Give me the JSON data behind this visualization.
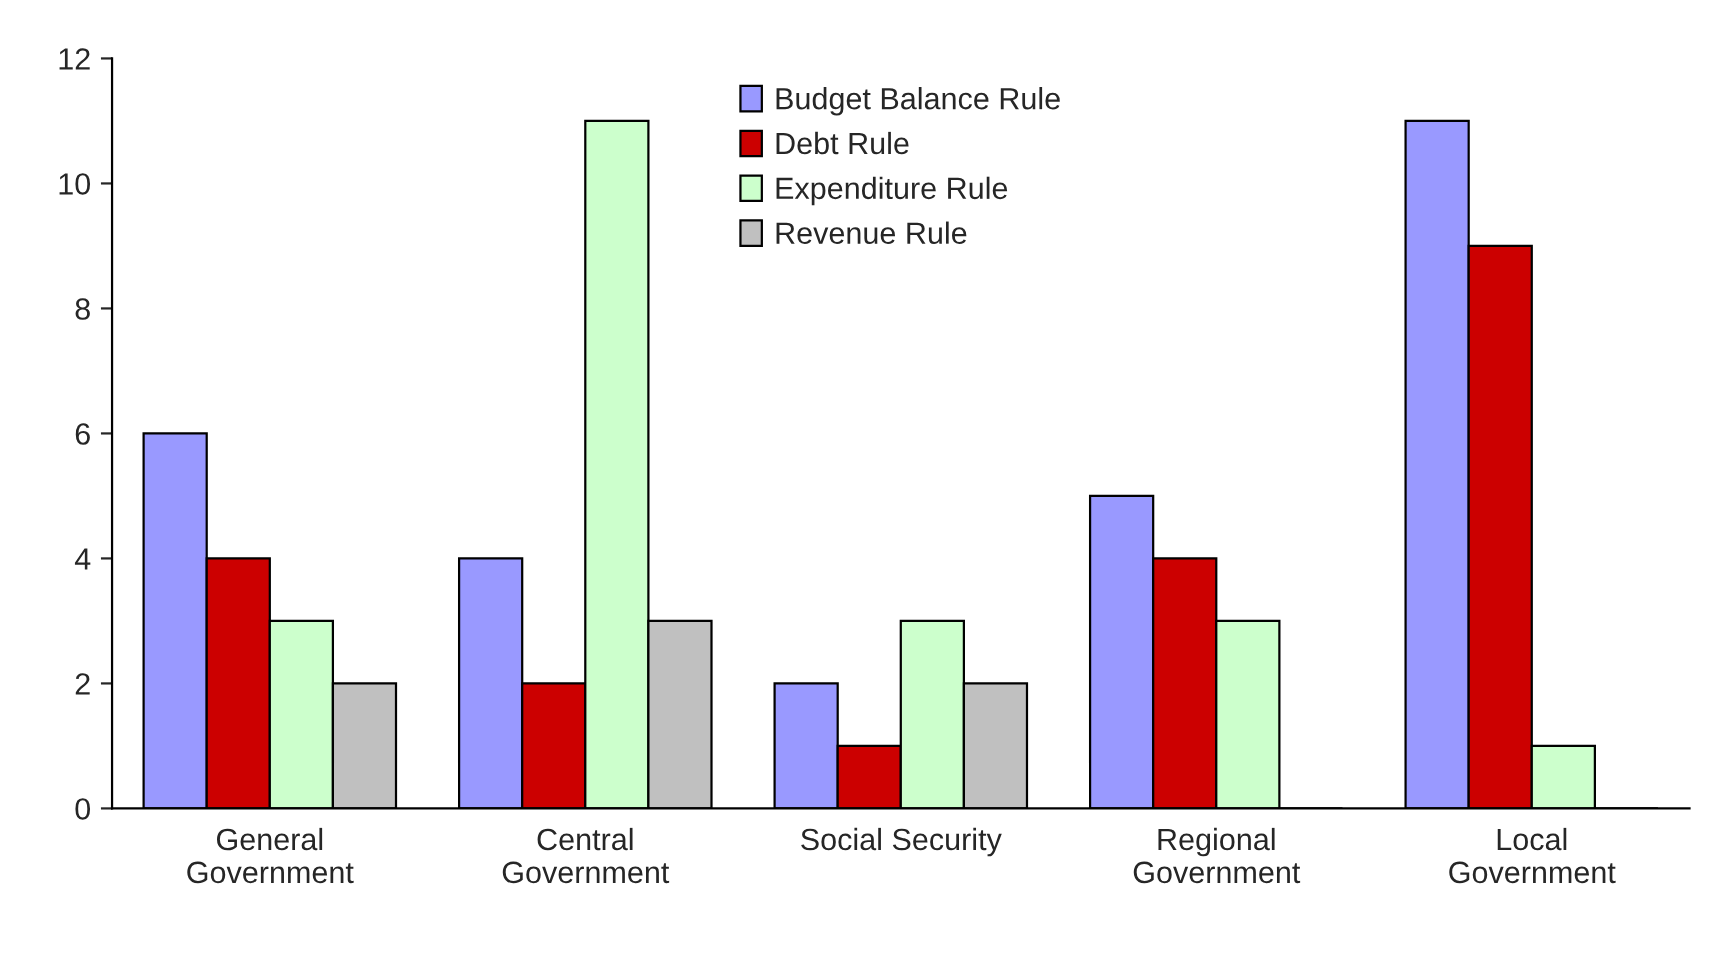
{
  "chart_data": {
    "type": "bar",
    "categories": [
      "General\nGovernment",
      "Central\nGovernment",
      "Social Security",
      "Regional\nGovernment",
      "Local\nGovernment"
    ],
    "series": [
      {
        "name": "Budget Balance Rule",
        "color": "#9999ff",
        "values": [
          6,
          4,
          2,
          5,
          11
        ]
      },
      {
        "name": "Debt Rule",
        "color": "#cc0000",
        "values": [
          4,
          2,
          1,
          4,
          9
        ]
      },
      {
        "name": "Expenditure Rule",
        "color": "#ccffcc",
        "values": [
          3,
          11,
          3,
          3,
          1
        ]
      },
      {
        "name": "Revenue Rule",
        "color": "#c0c0c0",
        "values": [
          2,
          3,
          2,
          0,
          0
        ]
      }
    ],
    "ylim": [
      0,
      12
    ],
    "yticks": [
      0,
      2,
      4,
      6,
      8,
      10,
      12
    ],
    "grid": false,
    "legend": "top"
  }
}
